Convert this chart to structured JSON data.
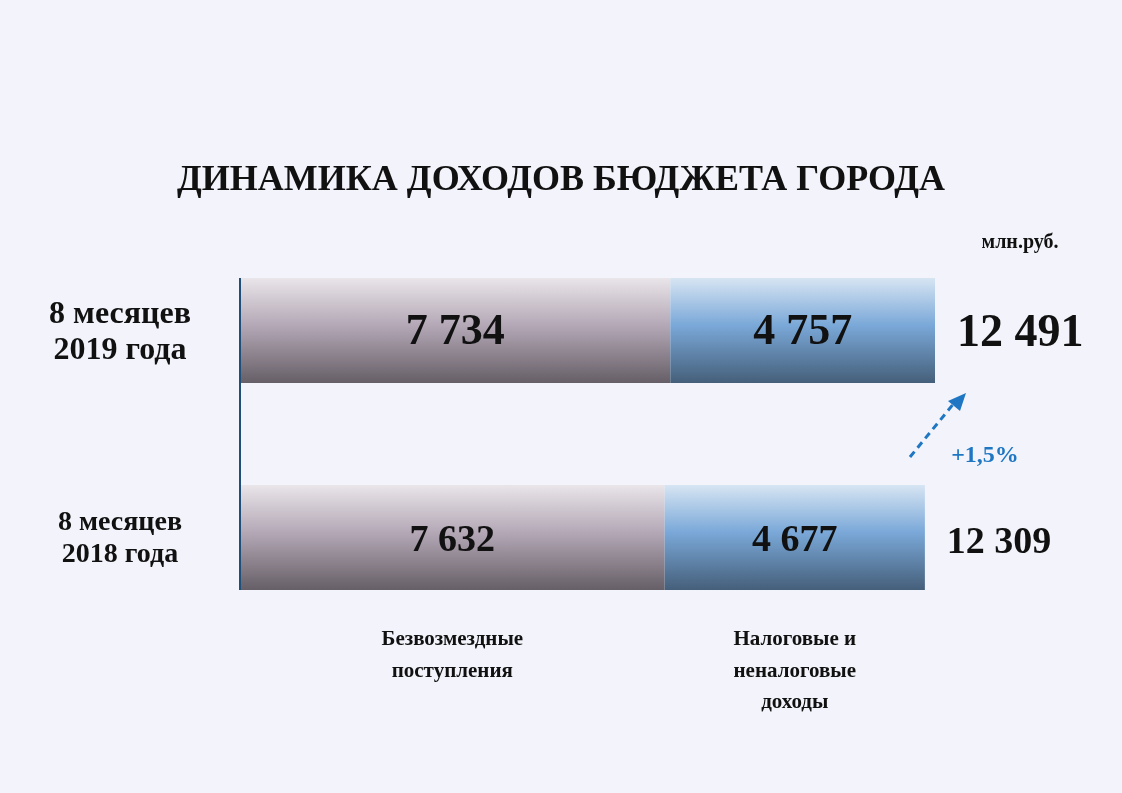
{
  "chart_data": {
    "type": "bar",
    "orientation": "horizontal",
    "stacked": true,
    "title": "ДИНАМИКА ДОХОДОВ БЮДЖЕТА ГОРОДА",
    "categories": [
      "8 месяцев 2019 года",
      "8 месяцев 2018 года"
    ],
    "series": [
      {
        "name": "Безвозмездные поступления",
        "color": "#b4a8b6",
        "values": [
          7734,
          7632
        ],
        "value_labels": [
          "7 734",
          "7 632"
        ]
      },
      {
        "name": "Налоговые и неналоговые доходы",
        "color": "#7aa8d8",
        "values": [
          4757,
          4677
        ],
        "value_labels": [
          "4 757",
          "4 677"
        ]
      }
    ],
    "totals": [
      "12 491",
      "12 309"
    ],
    "legend": "bottom",
    "annotations": [
      "млн.руб.",
      "+1,5%"
    ]
  }
}
